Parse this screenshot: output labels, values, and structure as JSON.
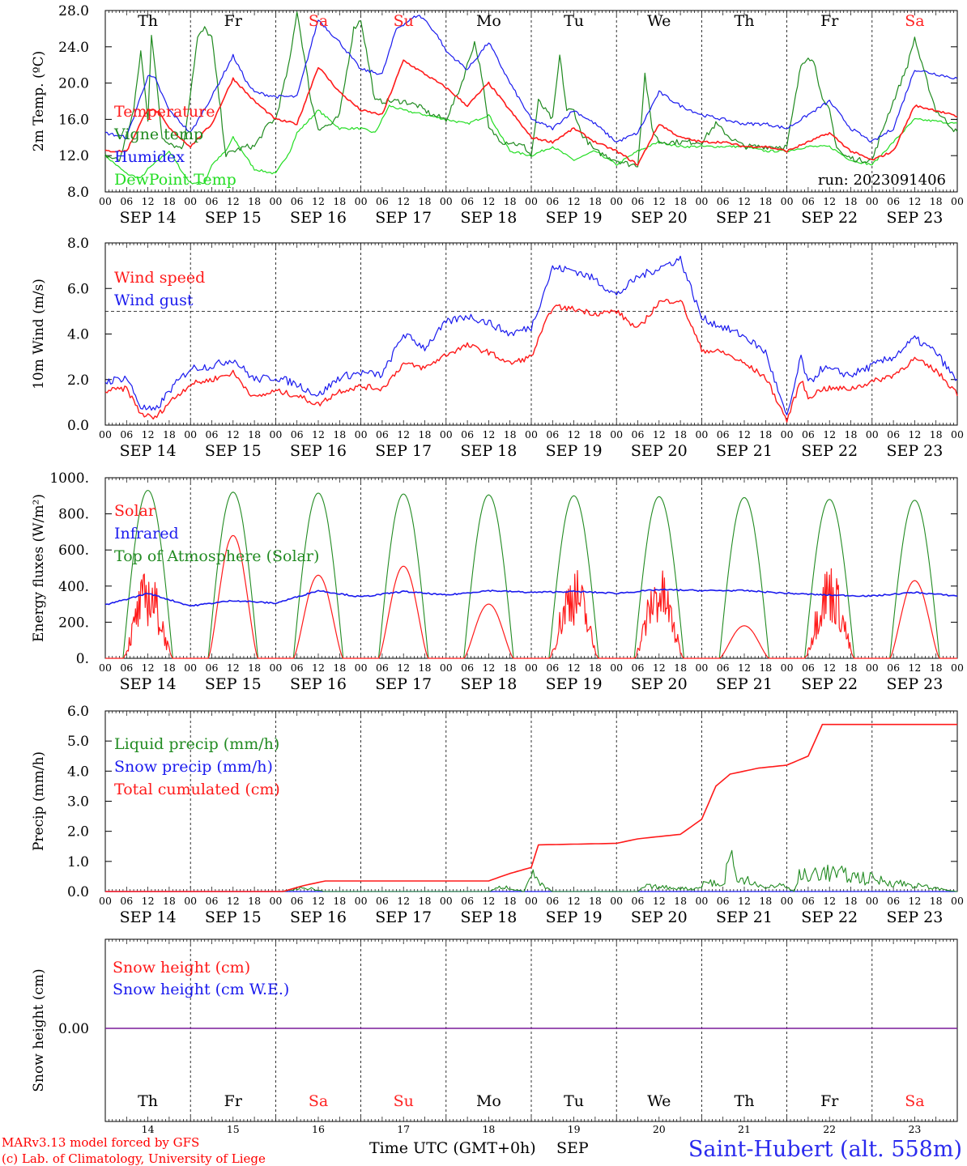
{
  "colors": {
    "temperature": "#ff1a1a",
    "vigne": "#1f8a1f",
    "humidex": "#1a1aee",
    "dewpoint": "#22dd22",
    "dark_green": "#228b22",
    "purple": "#7a1a9a",
    "axis": "#000000"
  },
  "days": [
    {
      "abbr": "Th",
      "num": "14",
      "weekend": false
    },
    {
      "abbr": "Fr",
      "num": "15",
      "weekend": false
    },
    {
      "abbr": "Sa",
      "num": "16",
      "weekend": true
    },
    {
      "abbr": "Su",
      "num": "17",
      "weekend": true
    },
    {
      "abbr": "Mo",
      "num": "18",
      "weekend": false
    },
    {
      "abbr": "Tu",
      "num": "19",
      "weekend": false
    },
    {
      "abbr": "We",
      "num": "20",
      "weekend": false
    },
    {
      "abbr": "Th",
      "num": "21",
      "weekend": false
    },
    {
      "abbr": "Fr",
      "num": "22",
      "weekend": false
    },
    {
      "abbr": "Sa",
      "num": "23",
      "weekend": true
    }
  ],
  "hour_ticks": [
    "00",
    "06",
    "12",
    "18"
  ],
  "date_labels": [
    "SEP 14",
    "SEP 15",
    "SEP 16",
    "SEP 17",
    "SEP 18",
    "SEP 19",
    "SEP 20",
    "SEP 21",
    "SEP 22",
    "SEP 23"
  ],
  "panels": {
    "temp": {
      "ylabel": "2m Temp. (ºC)",
      "ticks": [
        "8.0",
        "12.0",
        "16.0",
        "20.0",
        "24.0",
        "28.0"
      ],
      "legend": [
        "Temperature",
        "Vigne temp",
        "Humidex",
        "DewPoint Temp"
      ],
      "run_label": "run: 2023091406"
    },
    "wind": {
      "ylabel": "10m Wind (m/s)",
      "ticks": [
        "0.0",
        "2.0",
        "4.0",
        "6.0",
        "8.0"
      ],
      "legend": [
        "Wind speed",
        "Wind gust"
      ]
    },
    "energy": {
      "ylabel": "Energy fluxes (W/m²)",
      "ticks": [
        "0.",
        "200.",
        "400.",
        "600.",
        "800.",
        "1000."
      ],
      "legend": [
        "Solar",
        "Infrared",
        "Top of Atmosphere (Solar)"
      ]
    },
    "precip": {
      "ylabel": "Precip (mm/h)",
      "ticks": [
        "0.0",
        "1.0",
        "2.0",
        "3.0",
        "4.0",
        "5.0",
        "6.0"
      ],
      "legend": [
        "Liquid precip (mm/h)",
        "Snow precip (mm/h)",
        "Total cumulated (cm)"
      ]
    },
    "snow": {
      "ylabel": "Snow height (cm)",
      "ticks": [
        "0.00"
      ],
      "legend": [
        "Snow height (cm)",
        "Snow height (cm W.E.)"
      ]
    }
  },
  "footer": {
    "model": "MARv3.13 model forced by GFS",
    "copyright": "(c) Lab. of Climatology, University of Liege",
    "xlabel": "Time UTC (GMT+0h)",
    "month": "SEP",
    "station": "Saint-Hubert (alt. 558m)"
  },
  "chart_data": [
    {
      "type": "line",
      "x_unit": "hours since 2023-09-14 00 UTC",
      "ylabel": "2m Temp. (ºC)",
      "ylim": [
        8,
        28
      ],
      "series": [
        {
          "name": "Temperature",
          "x": [
            0,
            6,
            12,
            15,
            18,
            24,
            30,
            36,
            42,
            48,
            54,
            60,
            66,
            72,
            78,
            84,
            90,
            96,
            102,
            108,
            114,
            120,
            126,
            132,
            138,
            144,
            150,
            156,
            162,
            168,
            174,
            180,
            186,
            192,
            198,
            204,
            210,
            216,
            222,
            228,
            234,
            240
          ],
          "y": [
            12.5,
            12.5,
            17.2,
            16.8,
            15.0,
            13.0,
            15.5,
            20.5,
            18.0,
            16.0,
            15.5,
            21.8,
            19.0,
            17.0,
            16.5,
            22.5,
            21.0,
            19.5,
            17.5,
            20.0,
            17.0,
            14.0,
            13.5,
            15.0,
            13.5,
            12.5,
            11.0,
            15.5,
            14.0,
            13.5,
            13.5,
            13.0,
            13.0,
            12.5,
            13.5,
            14.5,
            12.5,
            11.5,
            12.5,
            17.5,
            17.0,
            16.3
          ]
        },
        {
          "name": "Vigne temp",
          "x": [
            0,
            4,
            8,
            10,
            12,
            13,
            16,
            20,
            22,
            26,
            28,
            30,
            34,
            36,
            40,
            42,
            46,
            48,
            52,
            54,
            58,
            60,
            64,
            66,
            70,
            72,
            76,
            82,
            84,
            88,
            92,
            96,
            100,
            104,
            106,
            108,
            112,
            114,
            118,
            120,
            122,
            126,
            128,
            130,
            132,
            134,
            138,
            144,
            148,
            150,
            152,
            154,
            156,
            158,
            160,
            162,
            168,
            172,
            176,
            180,
            186,
            192,
            196,
            198,
            200,
            202,
            204,
            206,
            208,
            212,
            216,
            220,
            226,
            228,
            230,
            234,
            240
          ],
          "y": [
            12.0,
            11.5,
            17.0,
            23.5,
            16.0,
            25.5,
            14.0,
            13.0,
            13.0,
            25.0,
            26.0,
            25.0,
            12.0,
            12.5,
            13.0,
            13.0,
            15.5,
            16.0,
            22.5,
            28.0,
            18.0,
            15.0,
            15.5,
            16.5,
            26.0,
            27.0,
            18.0,
            18.0,
            18.0,
            17.5,
            16.5,
            16.0,
            19.5,
            24.5,
            21.0,
            15.0,
            13.5,
            13.5,
            13.0,
            12.0,
            18.0,
            16.0,
            23.0,
            17.0,
            17.0,
            14.5,
            12.5,
            11.5,
            11.0,
            11.0,
            21.0,
            15.0,
            13.5,
            13.5,
            13.5,
            13.5,
            13.5,
            15.5,
            14.0,
            13.0,
            13.0,
            13.0,
            22.0,
            23.0,
            22.0,
            18.0,
            17.0,
            13.0,
            12.0,
            11.5,
            11.5,
            16.0,
            22.0,
            25.0,
            22.0,
            17.0,
            14.5
          ]
        },
        {
          "name": "Humidex",
          "x": [
            0,
            6,
            12,
            14,
            18,
            24,
            30,
            36,
            40,
            42,
            48,
            54,
            60,
            66,
            72,
            78,
            82,
            84,
            88,
            90,
            94,
            96,
            102,
            108,
            114,
            120,
            126,
            132,
            138,
            144,
            150,
            156,
            162,
            168,
            174,
            180,
            186,
            192,
            198,
            204,
            210,
            216,
            222,
            228,
            234,
            240
          ],
          "y": [
            14.5,
            14.0,
            20.8,
            20.5,
            17.0,
            14.5,
            18.5,
            23.0,
            20.0,
            19.0,
            18.5,
            18.5,
            27.0,
            24.5,
            21.5,
            21.0,
            26.0,
            26.5,
            27.5,
            27.0,
            25.0,
            23.5,
            21.5,
            24.5,
            20.0,
            16.0,
            15.0,
            17.0,
            15.5,
            13.5,
            14.5,
            19.0,
            17.5,
            16.5,
            16.0,
            15.5,
            15.5,
            15.0,
            16.5,
            18.0,
            15.0,
            13.5,
            15.0,
            21.5,
            21.0,
            20.5
          ]
        },
        {
          "name": "DewPoint Temp",
          "x": [
            0,
            6,
            10,
            12,
            18,
            22,
            24,
            28,
            30,
            34,
            36,
            42,
            48,
            52,
            54,
            60,
            66,
            72,
            76,
            80,
            84,
            90,
            96,
            102,
            108,
            114,
            120,
            126,
            132,
            138,
            144,
            150,
            156,
            162,
            168,
            174,
            180,
            186,
            192,
            198,
            204,
            210,
            216,
            222,
            228,
            234,
            240
          ],
          "y": [
            12.0,
            10.0,
            9.5,
            10.5,
            12.5,
            10.0,
            9.0,
            9.0,
            11.0,
            12.5,
            14.0,
            10.5,
            10.0,
            12.5,
            14.5,
            17.0,
            15.0,
            15.0,
            14.5,
            17.5,
            17.0,
            16.5,
            16.0,
            15.5,
            16.5,
            12.5,
            12.0,
            13.0,
            11.5,
            12.5,
            11.0,
            12.5,
            13.5,
            13.0,
            13.0,
            13.0,
            13.0,
            12.5,
            12.5,
            13.0,
            13.0,
            11.5,
            11.0,
            13.5,
            16.0,
            15.8,
            15.5
          ]
        }
      ]
    },
    {
      "type": "line",
      "x_unit": "hours since 2023-09-14 00 UTC",
      "ylabel": "10m Wind (m/s)",
      "ylim": [
        0,
        8
      ],
      "series": [
        {
          "name": "Wind speed",
          "x": [
            0,
            6,
            10,
            14,
            18,
            24,
            30,
            36,
            42,
            48,
            54,
            60,
            66,
            72,
            78,
            84,
            90,
            96,
            102,
            108,
            114,
            120,
            126,
            132,
            138,
            144,
            150,
            156,
            162,
            168,
            174,
            180,
            186,
            192,
            196,
            198,
            202,
            210,
            216,
            222,
            228,
            234,
            240
          ],
          "y": [
            1.5,
            1.6,
            0.5,
            0.3,
            1.0,
            1.8,
            2.0,
            2.3,
            1.2,
            1.5,
            1.3,
            0.9,
            1.5,
            1.7,
            1.6,
            2.7,
            2.5,
            3.1,
            3.5,
            3.2,
            2.7,
            3.0,
            5.2,
            5.1,
            4.9,
            5.0,
            4.2,
            5.4,
            5.5,
            3.3,
            3.2,
            2.7,
            2.1,
            0.2,
            2.0,
            1.2,
            1.6,
            1.6,
            1.9,
            2.2,
            2.9,
            2.4,
            1.4
          ]
        },
        {
          "name": "Wind gust",
          "x": [
            0,
            6,
            10,
            14,
            18,
            24,
            30,
            36,
            42,
            48,
            54,
            60,
            66,
            72,
            78,
            84,
            90,
            96,
            102,
            108,
            114,
            120,
            126,
            132,
            138,
            144,
            150,
            156,
            162,
            168,
            174,
            180,
            186,
            192,
            196,
            198,
            202,
            210,
            216,
            222,
            228,
            234,
            240
          ],
          "y": [
            1.9,
            2.1,
            0.8,
            0.6,
            1.5,
            2.5,
            2.6,
            2.9,
            2.0,
            2.1,
            1.8,
            1.3,
            2.1,
            2.3,
            2.2,
            4.0,
            3.4,
            4.5,
            4.8,
            4.5,
            4.0,
            4.3,
            6.9,
            6.8,
            6.4,
            5.7,
            6.5,
            6.9,
            7.3,
            4.7,
            4.3,
            3.9,
            3.2,
            0.3,
            3.0,
            1.8,
            2.5,
            2.2,
            2.6,
            3.0,
            3.8,
            3.2,
            1.9
          ]
        }
      ]
    },
    {
      "type": "line",
      "x_unit": "hours since 2023-09-14 00 UTC",
      "ylabel": "Energy fluxes (W/m²)",
      "ylim": [
        0,
        1000
      ],
      "series": [
        {
          "name": "Solar",
          "daily_peak": [
            500,
            680,
            460,
            510,
            300,
            520,
            510,
            180,
            540,
            430
          ]
        },
        {
          "name": "Infrared",
          "x": [
            0,
            12,
            24,
            36,
            48,
            60,
            72,
            84,
            96,
            108,
            120,
            132,
            144,
            156,
            168,
            180,
            192,
            204,
            216,
            228,
            240
          ],
          "y": [
            295,
            360,
            290,
            320,
            305,
            375,
            340,
            370,
            350,
            375,
            365,
            370,
            360,
            380,
            375,
            375,
            360,
            350,
            345,
            365,
            345
          ]
        },
        {
          "name": "Top of Atmosphere (Solar)",
          "daily_peak": [
            930,
            920,
            915,
            910,
            905,
            900,
            895,
            890,
            880,
            875
          ]
        }
      ]
    },
    {
      "type": "line",
      "x_unit": "hours since 2023-09-14 00 UTC",
      "ylabel": "Precip (mm/h)",
      "ylim": [
        0,
        6
      ],
      "series": [
        {
          "name": "Liquid precip (mm/h)",
          "x": [
            0,
            50,
            52,
            56,
            62,
            108,
            112,
            118,
            120,
            122,
            126,
            150,
            152,
            166,
            170,
            174,
            176,
            178,
            180,
            186,
            190,
            194,
            196,
            198,
            200,
            240
          ],
          "y": [
            0,
            0,
            0.05,
            0.15,
            0,
            0,
            0.2,
            0,
            0.8,
            0.3,
            0,
            0,
            0.2,
            0.1,
            0.4,
            0.2,
            1.6,
            0.3,
            0.6,
            0.1,
            0.3,
            0,
            0.8,
            0.4,
            0.8,
            0
          ]
        },
        {
          "name": "Snow precip (mm/h)",
          "x": [
            0,
            240
          ],
          "y": [
            0,
            0
          ]
        },
        {
          "name": "Total cumulated (cm)",
          "x": [
            0,
            50,
            56,
            62,
            108,
            114,
            120,
            122,
            144,
            150,
            162,
            168,
            172,
            176,
            184,
            192,
            198,
            202,
            240
          ],
          "y": [
            0,
            0,
            0.2,
            0.35,
            0.35,
            0.6,
            0.8,
            1.55,
            1.6,
            1.75,
            1.9,
            2.4,
            3.5,
            3.9,
            4.1,
            4.2,
            4.5,
            5.55,
            5.55
          ]
        }
      ]
    },
    {
      "type": "line",
      "x_unit": "hours since 2023-09-14 00 UTC",
      "ylabel": "Snow height (cm)",
      "series": [
        {
          "name": "Snow height (cm)",
          "x": [
            0,
            240
          ],
          "y": [
            0,
            0
          ]
        },
        {
          "name": "Snow height (cm W.E.)",
          "x": [
            0,
            240
          ],
          "y": [
            0,
            0
          ]
        }
      ]
    }
  ]
}
